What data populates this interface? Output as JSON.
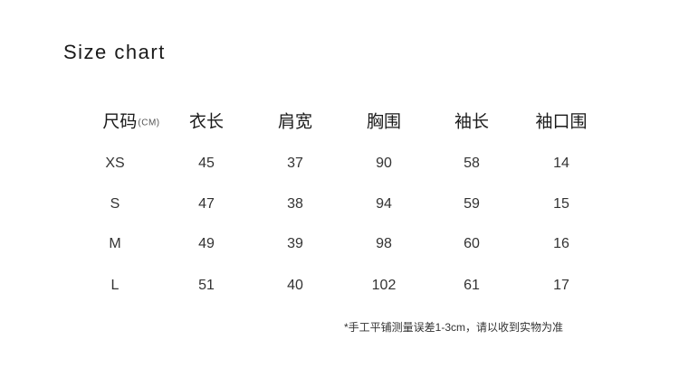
{
  "title": "Size chart",
  "table": {
    "headers": [
      "尺码",
      "衣长",
      "肩宽",
      "胸围",
      "袖长",
      "袖口围"
    ],
    "unit": "(CM)",
    "rows": [
      [
        "XS",
        "45",
        "37",
        "90",
        "58",
        "14"
      ],
      [
        "S",
        "47",
        "38",
        "94",
        "59",
        "15"
      ],
      [
        "M",
        "49",
        "39",
        "98",
        "60",
        "16"
      ],
      [
        "L",
        "51",
        "40",
        "102",
        "61",
        "17"
      ]
    ]
  },
  "note": "*手工平铺测量误差1-3cm，请以收到实物为准"
}
